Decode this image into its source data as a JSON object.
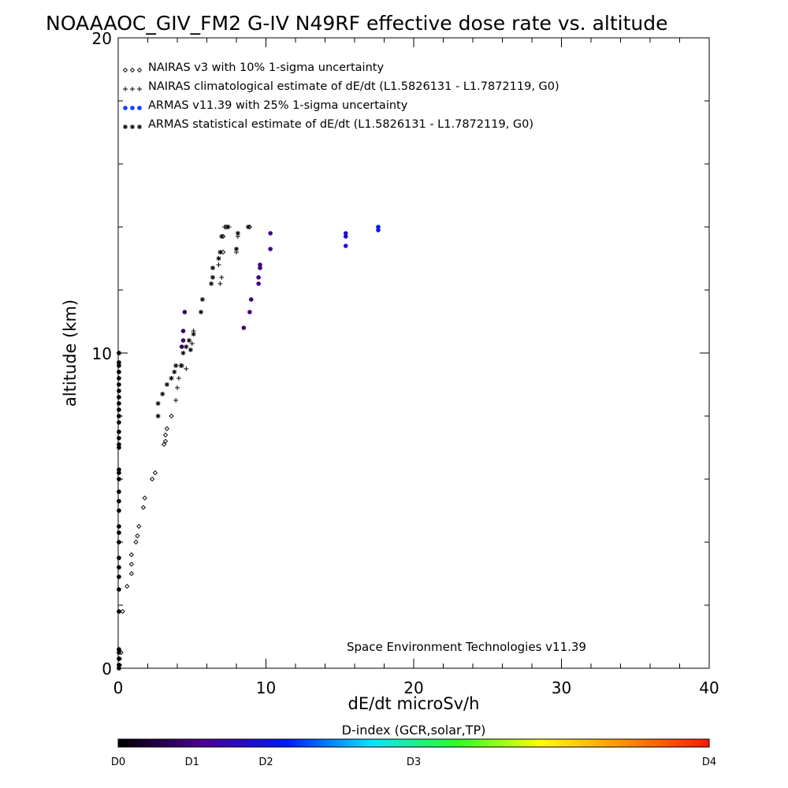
{
  "chart_data": {
    "type": "scatter",
    "title": "NOAAAOC_GIV_FM2 G-IV   N49RF  effective dose rate vs. altitude",
    "xlabel": "dE/dt microSv/h",
    "ylabel": "altitude (km)",
    "xlim": [
      0,
      40
    ],
    "ylim": [
      0,
      20
    ],
    "x_ticks": [
      "0",
      "10",
      "20",
      "30",
      "40"
    ],
    "y_ticks": [
      "0",
      "10",
      "20"
    ],
    "grid": false,
    "legend_position": "top-left",
    "watermark": "Space Environment Technologies v11.39",
    "colorbar": {
      "title": "D-index (GCR,solar,TP)",
      "labels": [
        "D0",
        "D1",
        "D2",
        "D3",
        "D4"
      ],
      "label_values": [
        0,
        0.5,
        1,
        2,
        4
      ],
      "stops": [
        "#000000",
        "#4b0090",
        "#0018ff",
        "#00e8ff",
        "#28ff28",
        "#ffff00",
        "#ff9000",
        "#ff1800"
      ]
    },
    "series": [
      {
        "name": "NAIRAS v3 with 10% 1-sigma uncertainty",
        "marker": "diamond",
        "color": "#000000",
        "points": [
          [
            0.1,
            0.1
          ],
          [
            0.1,
            0.3
          ],
          [
            0.2,
            0.5
          ],
          [
            0.3,
            1.8
          ],
          [
            0.6,
            2.6
          ],
          [
            0.9,
            3.0
          ],
          [
            0.9,
            3.3
          ],
          [
            0.9,
            3.6
          ],
          [
            1.2,
            4.0
          ],
          [
            1.3,
            4.2
          ],
          [
            1.4,
            4.5
          ],
          [
            1.7,
            5.1
          ],
          [
            1.8,
            5.4
          ],
          [
            2.3,
            6.0
          ],
          [
            2.5,
            6.2
          ],
          [
            3.1,
            7.1
          ],
          [
            3.2,
            7.2
          ],
          [
            3.2,
            7.4
          ],
          [
            3.3,
            7.6
          ],
          [
            3.6,
            8.0
          ],
          [
            7.3,
            14.0
          ],
          [
            7.1,
            13.7
          ],
          [
            7.1,
            13.2
          ],
          [
            8.9,
            14.0
          ]
        ]
      },
      {
        "name": "NAIRAS climatological estimate of dE/dt (L1.5826131 - L1.7872119, G0)",
        "marker": "plus",
        "color": "#000000",
        "points": [
          [
            3.9,
            8.5
          ],
          [
            4.0,
            8.9
          ],
          [
            4.1,
            9.2
          ],
          [
            4.2,
            9.6
          ],
          [
            4.6,
            9.5
          ],
          [
            5.0,
            10.3
          ],
          [
            5.1,
            10.7
          ],
          [
            6.9,
            12.2
          ],
          [
            7.0,
            12.4
          ],
          [
            6.8,
            12.8
          ],
          [
            7.2,
            14.0
          ],
          [
            7.5,
            14.0
          ],
          [
            8.1,
            13.7
          ],
          [
            8.0,
            13.2
          ]
        ]
      },
      {
        "name": "ARMAS v11.39 with 25% 1-sigma uncertainty",
        "marker": "dot",
        "color": "#1040ff",
        "points": [
          [
            4.3,
            10.2
          ],
          [
            4.4,
            10.4
          ],
          [
            4.4,
            10.7
          ],
          [
            4.5,
            11.3
          ],
          [
            8.5,
            10.8
          ],
          [
            8.9,
            11.3
          ],
          [
            9.0,
            11.7
          ],
          [
            9.5,
            12.2
          ],
          [
            9.5,
            12.4
          ],
          [
            9.6,
            12.7
          ],
          [
            9.6,
            12.8
          ],
          [
            10.3,
            13.3
          ],
          [
            10.3,
            13.8
          ],
          [
            15.4,
            13.4
          ],
          [
            15.4,
            13.7
          ],
          [
            15.4,
            13.8
          ],
          [
            17.6,
            13.9
          ],
          [
            17.6,
            14.0
          ]
        ],
        "dindex": [
          0.4,
          0.4,
          0.4,
          0.4,
          0.5,
          0.5,
          0.5,
          0.5,
          0.5,
          0.5,
          0.5,
          0.5,
          0.5,
          0.9,
          0.9,
          0.9,
          1.1,
          1.1
        ]
      },
      {
        "name": "ARMAS statistical estimate of dE/dt (L1.5826131 - L1.7872119, G0)",
        "marker": "asterisk",
        "color": "#000000",
        "points": [
          [
            2.7,
            8.0
          ],
          [
            2.7,
            8.4
          ],
          [
            3.0,
            8.7
          ],
          [
            3.3,
            9.0
          ],
          [
            3.6,
            9.2
          ],
          [
            3.8,
            9.4
          ],
          [
            3.9,
            9.6
          ],
          [
            4.3,
            9.6
          ],
          [
            4.4,
            10.0
          ],
          [
            4.6,
            10.2
          ],
          [
            4.8,
            10.4
          ],
          [
            4.9,
            10.1
          ],
          [
            5.1,
            10.6
          ],
          [
            5.6,
            11.3
          ],
          [
            5.7,
            11.7
          ],
          [
            6.3,
            12.2
          ],
          [
            6.4,
            12.4
          ],
          [
            6.4,
            12.7
          ],
          [
            6.8,
            13.0
          ],
          [
            6.9,
            13.2
          ],
          [
            7.0,
            13.7
          ],
          [
            7.4,
            14.0
          ],
          [
            8.1,
            13.8
          ],
          [
            8.0,
            13.3
          ],
          [
            8.8,
            14.0
          ]
        ]
      },
      {
        "name": "",
        "marker": "dot",
        "color": "#000000",
        "points": [
          [
            0.05,
            0.0
          ],
          [
            0.05,
            0.1
          ],
          [
            0.05,
            0.3
          ],
          [
            0.05,
            0.5
          ],
          [
            0.05,
            0.6
          ],
          [
            0.05,
            1.8
          ],
          [
            0.05,
            2.5
          ],
          [
            0.05,
            2.9
          ],
          [
            0.05,
            3.2
          ],
          [
            0.05,
            3.5
          ],
          [
            0.05,
            4.0
          ],
          [
            0.05,
            4.3
          ],
          [
            0.05,
            4.5
          ],
          [
            0.05,
            5.0
          ],
          [
            0.05,
            5.3
          ],
          [
            0.05,
            5.6
          ],
          [
            0.05,
            6.0
          ],
          [
            0.05,
            6.2
          ],
          [
            0.05,
            6.3
          ],
          [
            0.05,
            7.0
          ],
          [
            0.05,
            7.1
          ],
          [
            0.05,
            7.3
          ],
          [
            0.05,
            7.5
          ],
          [
            0.05,
            7.8
          ],
          [
            0.05,
            8.0
          ],
          [
            0.05,
            8.2
          ],
          [
            0.05,
            8.4
          ],
          [
            0.05,
            8.6
          ],
          [
            0.05,
            8.8
          ],
          [
            0.05,
            9.0
          ],
          [
            0.05,
            9.2
          ],
          [
            0.05,
            9.4
          ],
          [
            0.05,
            9.6
          ],
          [
            0.05,
            9.7
          ],
          [
            0.05,
            10.0
          ]
        ]
      }
    ]
  }
}
